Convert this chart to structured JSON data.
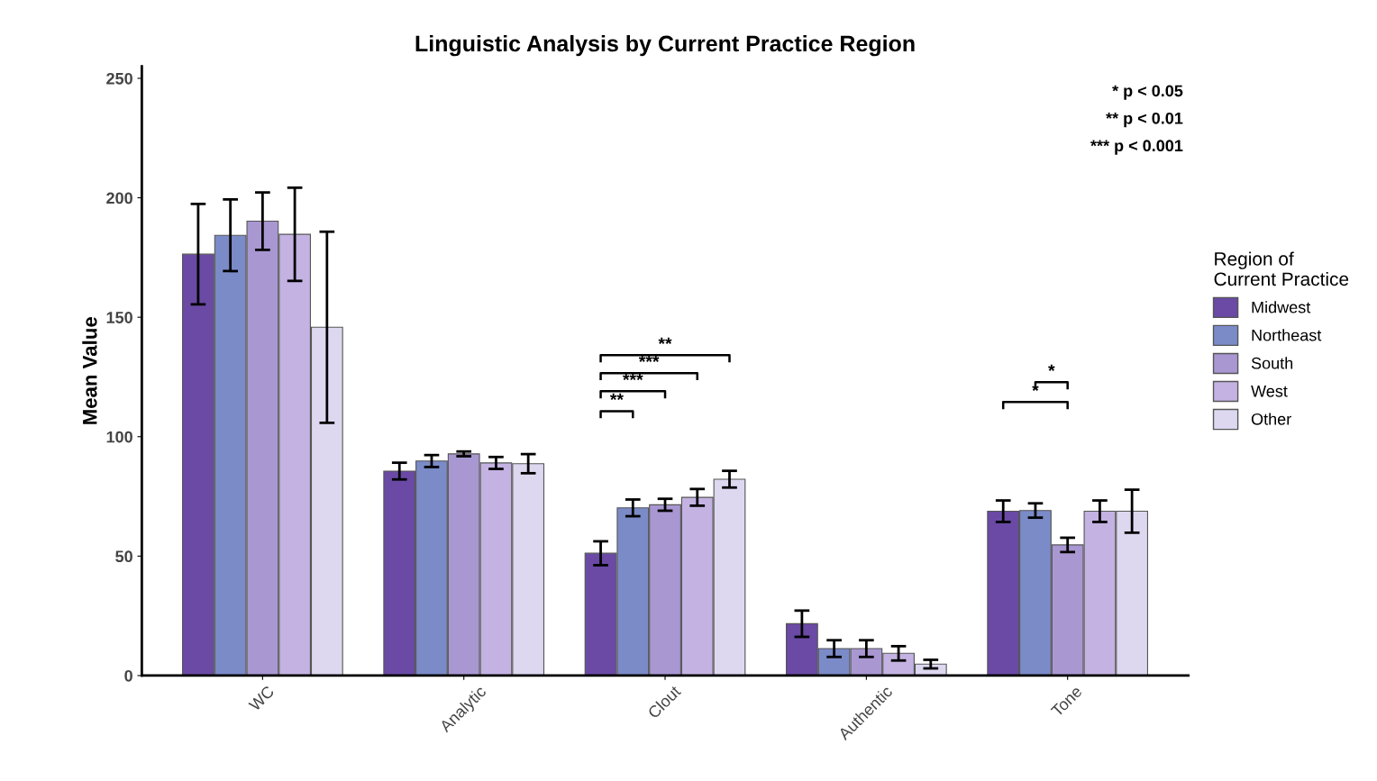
{
  "chart_data": {
    "type": "bar",
    "title": "Linguistic Analysis by Current Practice Region",
    "ylabel": "Mean Value",
    "legend_title": "Region of Current Practice",
    "legend": "right",
    "grid": false,
    "categories": [
      "WC",
      "Analytic",
      "Clout",
      "Authentic",
      "Tone"
    ],
    "ylim": [
      0,
      255
    ],
    "yticks": [
      0,
      50,
      100,
      150,
      200,
      250
    ],
    "series": [
      {
        "name": "Midwest",
        "color": "#6a4aa5",
        "values": [
          176.4,
          85.6,
          51.2,
          21.7,
          68.8
        ],
        "errors": [
          21,
          3.5,
          5,
          5.5,
          4.5
        ]
      },
      {
        "name": "Northeast",
        "color": "#7b8bc8",
        "values": [
          184.3,
          89.8,
          70.2,
          11.3,
          69.1
        ],
        "errors": [
          15,
          2.5,
          3.5,
          3.5,
          3
        ]
      },
      {
        "name": "South",
        "color": "#a997d2",
        "values": [
          190.2,
          92.8,
          71.5,
          11.3,
          54.7
        ],
        "errors": [
          12,
          1,
          2.5,
          3.5,
          3
        ]
      },
      {
        "name": "West",
        "color": "#c3b2e2",
        "values": [
          184.7,
          89,
          74.6,
          9.3,
          68.8
        ],
        "errors": [
          19.5,
          2.5,
          3.5,
          3,
          4.5
        ]
      },
      {
        "name": "Other",
        "color": "#ddd8f0",
        "values": [
          145.8,
          88.7,
          82.2,
          4.8,
          68.8
        ],
        "errors": [
          40,
          4,
          3.5,
          1.8,
          9
        ]
      }
    ],
    "annotations": [
      "* p < 0.05",
      "** p < 0.01",
      "*** p < 0.001",
      "**",
      "***",
      "***",
      "**",
      "*",
      "*"
    ]
  }
}
